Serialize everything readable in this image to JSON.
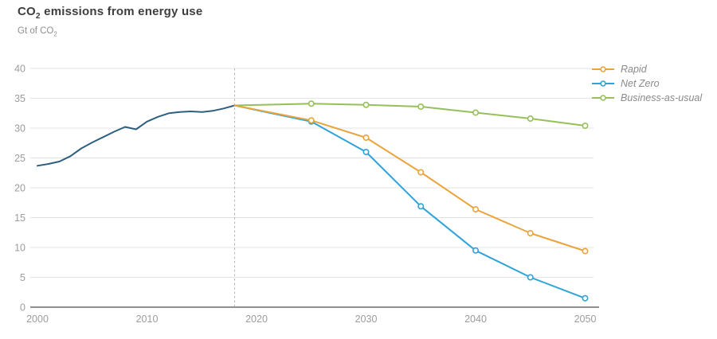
{
  "header": {
    "title": {
      "pre": "CO",
      "sub": "2",
      "rest": " emissions from energy use"
    },
    "unit": {
      "pre": "Gt of CO",
      "sub": "2"
    }
  },
  "chart_data": {
    "type": "line",
    "title": "CO2 emissions from energy use",
    "ylabel": "Gt of CO2",
    "xlabel": "",
    "ylim": [
      0,
      40
    ],
    "xlim": [
      2000,
      2050
    ],
    "y_ticks": [
      0,
      5,
      10,
      15,
      20,
      25,
      30,
      35,
      40
    ],
    "x_ticks": [
      2000,
      2010,
      2020,
      2030,
      2040,
      2050
    ],
    "grid": "horizontal",
    "legend_position": "top-right",
    "annotations": [
      {
        "type": "vline",
        "x": 2018,
        "style": "dashed",
        "color": "#b3b3b3"
      }
    ],
    "style": {
      "grid_color": "#e3e3e3",
      "axis_color": "#8f8f8f",
      "tick_label_color": "#9c9c9c"
    },
    "series": [
      {
        "name": "Historical",
        "color": "#2e5f7f",
        "markers": false,
        "in_legend": false,
        "x": [
          2000,
          2001,
          2002,
          2003,
          2004,
          2005,
          2006,
          2007,
          2008,
          2009,
          2010,
          2011,
          2012,
          2013,
          2014,
          2015,
          2016,
          2017,
          2018
        ],
        "y": [
          23.7,
          24.0,
          24.4,
          25.3,
          26.6,
          27.6,
          28.5,
          29.4,
          30.2,
          29.8,
          31.1,
          31.9,
          32.5,
          32.7,
          32.8,
          32.7,
          32.9,
          33.3,
          33.8
        ]
      },
      {
        "name": "Business-as-usual",
        "color": "#96c05a",
        "markers": true,
        "marker_min_x": 2020,
        "in_legend": true,
        "x": [
          2018,
          2025,
          2030,
          2035,
          2040,
          2045,
          2050
        ],
        "y": [
          33.8,
          34.1,
          33.9,
          33.6,
          32.6,
          31.6,
          30.4
        ]
      },
      {
        "name": "Net Zero",
        "color": "#2fa3d8",
        "markers": true,
        "marker_min_x": 2020,
        "in_legend": true,
        "x": [
          2018,
          2025,
          2030,
          2035,
          2040,
          2045,
          2050
        ],
        "y": [
          33.8,
          31.1,
          26.0,
          16.9,
          9.5,
          5.0,
          1.5
        ]
      },
      {
        "name": "Rapid",
        "color": "#e9a53c",
        "markers": true,
        "marker_min_x": 2020,
        "in_legend": true,
        "x": [
          2018,
          2025,
          2030,
          2035,
          2040,
          2045,
          2050
        ],
        "y": [
          33.8,
          31.3,
          28.4,
          22.6,
          16.4,
          12.4,
          9.4
        ]
      }
    ]
  }
}
